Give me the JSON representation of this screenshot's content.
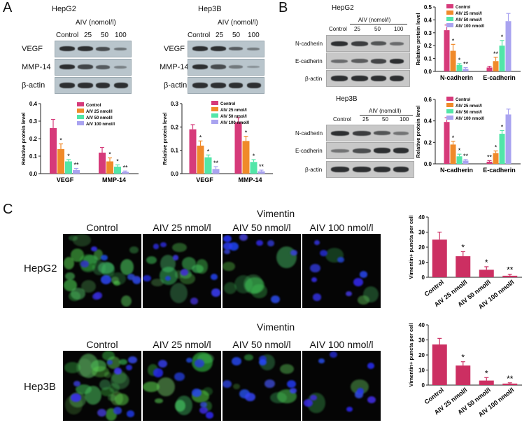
{
  "panel_labels": {
    "a": "A",
    "b": "B",
    "c": "C"
  },
  "panelA": {
    "hepg2": {
      "title": "HepG2",
      "dose_header": "AIV (nomol/l)",
      "lanes": [
        "Control",
        "25",
        "50",
        "100"
      ],
      "rows": [
        "VEGF",
        "MMP-14",
        "β-actin"
      ]
    },
    "hep3b": {
      "title": "Hep3B",
      "dose_header": "AIV (nomol/l)",
      "lanes": [
        "Control",
        "25",
        "50",
        "100"
      ],
      "rows": [
        "VEGF",
        "MMP-14",
        "β-actin"
      ]
    }
  },
  "panelB": {
    "hepg2": {
      "title": "HepG2",
      "dose_header": "AIV (nomol/l)",
      "lanes": [
        "Control",
        "25",
        "50",
        "100"
      ],
      "rows": [
        "N-cadherin",
        "E-cadherin",
        "β-actin"
      ]
    },
    "hep3b": {
      "title": "Hep3B",
      "dose_header": "AIV (nomol/l)",
      "lanes": [
        "Control",
        "25",
        "50",
        "100"
      ],
      "rows": [
        "N-cadherin",
        "E-cadherin",
        "β-actin"
      ]
    }
  },
  "panelC": {
    "title_hepg2": "Vimentin",
    "title_hep3b": "Vimentin",
    "columns": [
      "Control",
      "AIV 25 nmol/l",
      "AIV 50 nmol/l",
      "AIV 100 nmol/l"
    ],
    "row_hepg2": "HepG2",
    "row_hep3b": "Hep3B"
  },
  "colors": {
    "control": "#d63a7a",
    "aiv25": "#f08a2a",
    "aiv50": "#52e6a8",
    "aiv100": "#a9a3f0",
    "bar_c": "#cc2f62"
  },
  "chart_data": [
    {
      "id": "A-HepG2",
      "type": "bar",
      "categories": [
        "VEGF",
        "MMP-14"
      ],
      "ylabel": "Relative protein level",
      "ylim": [
        0,
        0.4
      ],
      "yticks": [
        "0.0",
        "0.1",
        "0.2",
        "0.3",
        "0.4"
      ],
      "legend": "top-right",
      "series": [
        {
          "name": "Control",
          "values": [
            0.26,
            0.12
          ],
          "err": [
            0.05,
            0.03
          ],
          "marks": [
            "",
            ""
          ]
        },
        {
          "name": "AIV 25 nmol/l",
          "values": [
            0.14,
            0.07
          ],
          "err": [
            0.03,
            0.02
          ],
          "marks": [
            "*",
            "*"
          ]
        },
        {
          "name": "AIV 50 nmol/l",
          "values": [
            0.07,
            0.04
          ],
          "err": [
            0.01,
            0.01
          ],
          "marks": [
            "*",
            "*"
          ]
        },
        {
          "name": "AIV 100 nmol/l",
          "values": [
            0.02,
            0.01
          ],
          "err": [
            0.01,
            0.005
          ],
          "marks": [
            "**",
            "**"
          ]
        }
      ]
    },
    {
      "id": "A-Hep3B",
      "type": "bar",
      "categories": [
        "VEGF",
        "MMP-14"
      ],
      "ylabel": "Relative protein level",
      "ylim": [
        0,
        0.3
      ],
      "yticks": [
        "0.0",
        "0.1",
        "0.2",
        "0.3"
      ],
      "legend": "top-right",
      "series": [
        {
          "name": "Control",
          "values": [
            0.19,
            0.22
          ],
          "err": [
            0.02,
            0.02
          ],
          "marks": [
            "",
            ""
          ]
        },
        {
          "name": "AIV 25 nmol/l",
          "values": [
            0.12,
            0.14
          ],
          "err": [
            0.02,
            0.02
          ],
          "marks": [
            "*",
            "*"
          ]
        },
        {
          "name": "AIV 50 nmol/l",
          "values": [
            0.07,
            0.05
          ],
          "err": [
            0.01,
            0.01
          ],
          "marks": [
            "*",
            "*"
          ]
        },
        {
          "name": "AIV 100 nmol/l",
          "values": [
            0.02,
            0.01
          ],
          "err": [
            0.01,
            0.005
          ],
          "marks": [
            "**",
            "**"
          ]
        }
      ]
    },
    {
      "id": "B-HepG2",
      "type": "bar",
      "categories": [
        "N-cadherin",
        "E-cadherin"
      ],
      "ylabel": "Relative protein level",
      "ylim": [
        0,
        0.5
      ],
      "yticks": [
        "0.0",
        "0.1",
        "0.2",
        "0.3",
        "0.4",
        "0.5"
      ],
      "legend": "top-left",
      "series": [
        {
          "name": "Control",
          "values": [
            0.32,
            0.03
          ],
          "err": [
            0.04,
            0.01
          ],
          "marks": [
            "",
            ""
          ]
        },
        {
          "name": "AIV 25 nmol/l",
          "values": [
            0.16,
            0.08
          ],
          "err": [
            0.05,
            0.03
          ],
          "marks": [
            "*",
            "**"
          ]
        },
        {
          "name": "AIV 50 nmol/l",
          "values": [
            0.05,
            0.2
          ],
          "err": [
            0.01,
            0.04
          ],
          "marks": [
            "*",
            "*"
          ]
        },
        {
          "name": "AIV 100 nmol/l",
          "values": [
            0.02,
            0.39
          ],
          "err": [
            0.01,
            0.06
          ],
          "marks": [
            "**",
            ""
          ]
        }
      ]
    },
    {
      "id": "B-Hep3B",
      "type": "bar",
      "categories": [
        "N-cadherin",
        "E-cadherin"
      ],
      "ylabel": "Relative protein level",
      "ylim": [
        0,
        0.6
      ],
      "yticks": [
        "0.0",
        "0.2",
        "0.4",
        "0.6"
      ],
      "legend": "top-left",
      "series": [
        {
          "name": "Control",
          "values": [
            0.39,
            0.02
          ],
          "err": [
            0.04,
            0.01
          ],
          "marks": [
            "",
            "**"
          ]
        },
        {
          "name": "AIV 25 nmol/l",
          "values": [
            0.18,
            0.1
          ],
          "err": [
            0.03,
            0.02
          ],
          "marks": [
            "*",
            "*"
          ]
        },
        {
          "name": "AIV 50 nmol/l",
          "values": [
            0.07,
            0.28
          ],
          "err": [
            0.02,
            0.03
          ],
          "marks": [
            "*",
            "*"
          ]
        },
        {
          "name": "AIV 100 nmol/l",
          "values": [
            0.03,
            0.46
          ],
          "err": [
            0.01,
            0.05
          ],
          "marks": [
            "**",
            ""
          ]
        }
      ]
    },
    {
      "id": "C-HepG2",
      "type": "bar",
      "categories": [
        "Control",
        "AIV 25 nmol/l",
        "AIV 50 nmol/l",
        "AIV 100 nmol/l"
      ],
      "ylabel": "Vimentin+ puncta per cell",
      "ylim": [
        0,
        40
      ],
      "yticks": [
        "0",
        "10",
        "20",
        "30",
        "40"
      ],
      "series": [
        {
          "name": "",
          "values": [
            25,
            14,
            5,
            1
          ],
          "err": [
            5,
            3,
            2,
            1
          ],
          "marks": [
            "",
            "*",
            "*",
            "**"
          ]
        }
      ]
    },
    {
      "id": "C-Hep3B",
      "type": "bar",
      "categories": [
        "Control",
        "AIV 25 nmol/l",
        "AIV 50 nmol/l",
        "AIV 100 nmol/l"
      ],
      "ylabel": "Vimentin+ puncta per cell",
      "ylim": [
        0,
        40
      ],
      "yticks": [
        "0",
        "10",
        "20",
        "30",
        "40"
      ],
      "series": [
        {
          "name": "",
          "values": [
            27,
            13,
            3,
            1
          ],
          "err": [
            4,
            2.5,
            2,
            0.5
          ],
          "marks": [
            "",
            "*",
            "*",
            "**"
          ]
        }
      ]
    }
  ]
}
